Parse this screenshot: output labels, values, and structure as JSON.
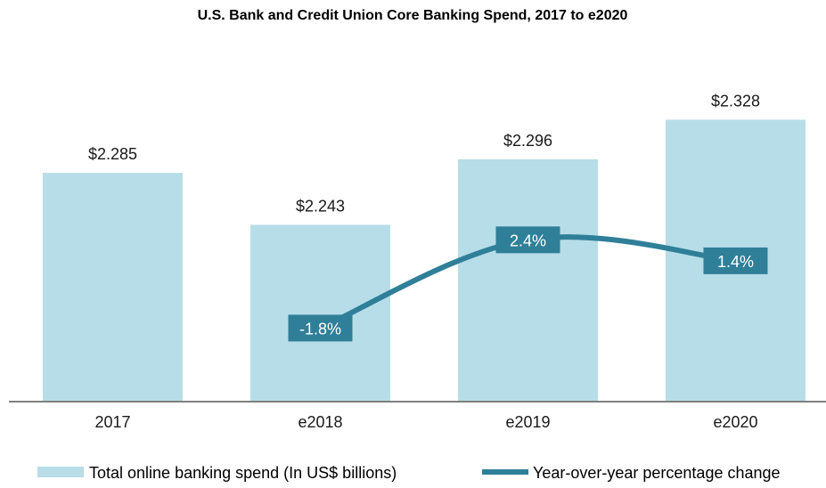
{
  "colors": {
    "bar": "#b7dde8",
    "line": "#2f7f99",
    "axis": "#808080",
    "text": "#1a1a1a",
    "pct_label_text": "#ffffff"
  },
  "chart_data": {
    "type": "bar",
    "title": "U.S. Bank and Credit Union Core Banking Spend, 2017 to e2020",
    "xlabel": "",
    "ylabel": "",
    "categories": [
      "2017",
      "e2018",
      "e2019",
      "e2020"
    ],
    "ylim": [
      2.1,
      2.36
    ],
    "series": [
      {
        "name": "Total online banking spend (In US$ billions)",
        "type": "bar",
        "values": [
          2.285,
          2.243,
          2.296,
          2.328
        ],
        "labels": [
          "$2.285",
          "$2.243",
          "$2.296",
          "$2.328"
        ]
      },
      {
        "name": "Year-over-year percentage change",
        "type": "line",
        "values": [
          null,
          -1.8,
          2.4,
          1.4
        ],
        "labels": [
          "",
          "-1.8%",
          "2.4%",
          "1.4%"
        ],
        "ylim": [
          -5.3,
          10
        ]
      }
    ],
    "legend_position": "bottom",
    "grid": false
  }
}
